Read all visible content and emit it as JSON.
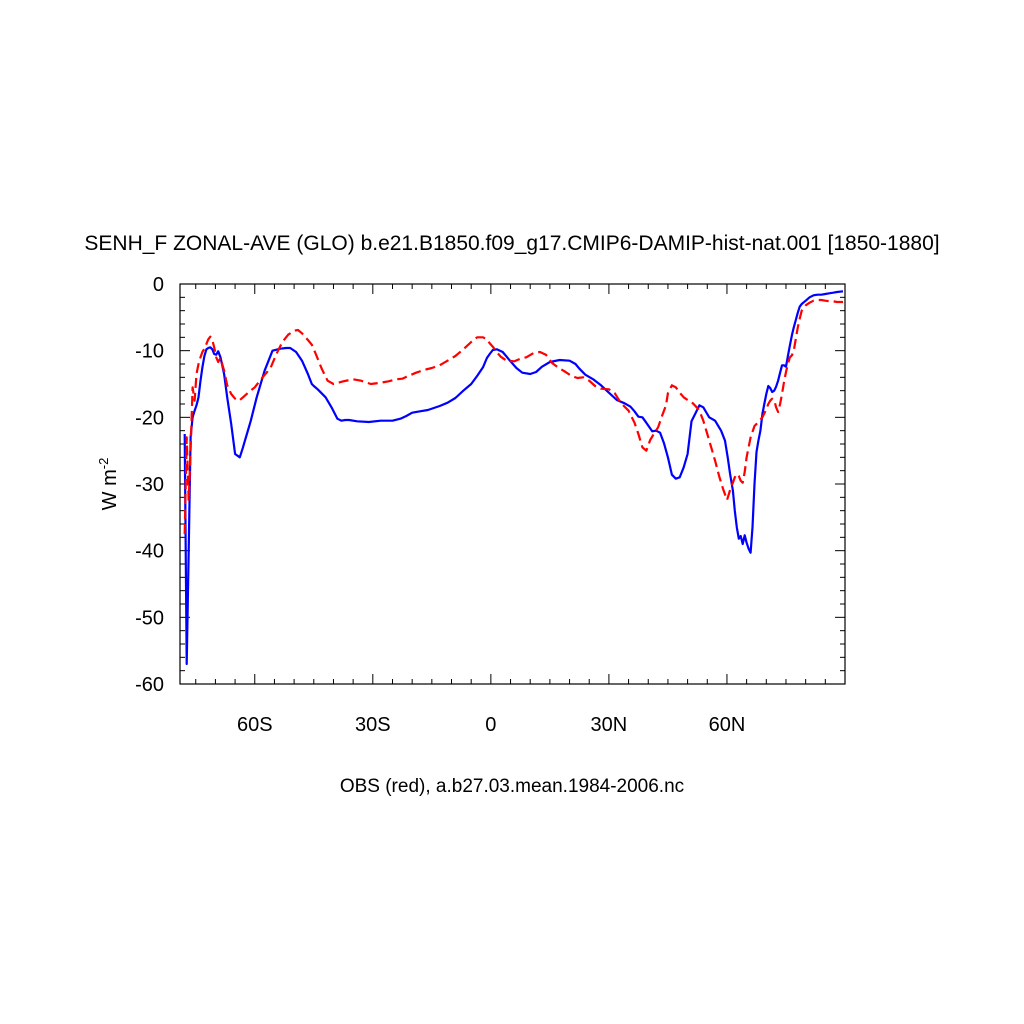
{
  "chart_data": {
    "type": "line",
    "title": "SENH_F ZONAL-AVE (GLO) b.e21.B1850.f09_g17.CMIP6-DAMIP-hist-nat.001 [1850-1880]",
    "xlabel": "OBS (red), a.b27.03.mean.1984-2006.nc",
    "ylabel": "W m",
    "ylabel_superscript": "-2",
    "xlim": [
      -79,
      90
    ],
    "ylim": [
      -60,
      0
    ],
    "x_ticks": [
      {
        "value": -60,
        "label": "60S"
      },
      {
        "value": -30,
        "label": "30S"
      },
      {
        "value": 0,
        "label": "0"
      },
      {
        "value": 30,
        "label": "30N"
      },
      {
        "value": 60,
        "label": "60N"
      }
    ],
    "y_ticks": [
      {
        "value": 0,
        "label": "0"
      },
      {
        "value": -10,
        "label": "-10"
      },
      {
        "value": -20,
        "label": "-20"
      },
      {
        "value": -30,
        "label": "-30"
      },
      {
        "value": -40,
        "label": "-40"
      },
      {
        "value": -50,
        "label": "-50"
      },
      {
        "value": -60,
        "label": "-60"
      }
    ],
    "grid": false,
    "series": [
      {
        "color": "#0000ff",
        "dash": "solid",
        "x": [
          -77.8,
          -77.3,
          -76.8,
          -76.3,
          -75.8,
          -75.3,
          -74.8,
          -74.3,
          -73.8,
          -73.3,
          -72.8,
          -72.3,
          -71.8,
          -71.3,
          -70.8,
          -70.3,
          -69.8,
          -69.3,
          -68.7,
          -67.8,
          -67.0,
          -66.0,
          -65.0,
          -63.8,
          -63.0,
          -62.5,
          -62.0,
          -61.0,
          -59.5,
          -57.5,
          -55.5,
          -53.5,
          -52.0,
          -51.0,
          -49.5,
          -48.0,
          -46.5,
          -45.5,
          -45.0,
          -44.0,
          -42.0,
          -40.5,
          -39.0,
          -38.0,
          -37.0,
          -36.0,
          -34.0,
          -31.0,
          -28.0,
          -25.0,
          -23.0,
          -21.5,
          -20.0,
          -18.0,
          -16.0,
          -14.5,
          -13.0,
          -11.0,
          -9.0,
          -7.0,
          -5.0,
          -3.5,
          -2.0,
          -1.0,
          -0.3,
          0.5,
          1.5,
          3.0,
          5.0,
          6.5,
          8.0,
          10.0,
          11.5,
          13.0,
          15.0,
          17.5,
          20.0,
          21.5,
          22.5,
          24.0,
          26.0,
          28.0,
          30.0,
          32.0,
          34.0,
          35.5,
          36.5,
          37.5,
          38.5,
          39.5,
          41.0,
          42.0,
          43.0,
          44.0,
          45.0,
          46.0,
          47.0,
          48.0,
          49.0,
          50.0,
          51.0,
          52.0,
          53.0,
          54.0,
          55.5,
          57.0,
          58.5,
          59.5,
          60.2,
          60.8,
          61.5,
          62.0,
          62.5,
          63.0,
          63.5,
          64.0,
          64.5,
          65.0,
          65.5,
          66.0,
          66.5,
          67.0,
          67.5,
          68.0,
          68.5,
          69.0,
          69.5,
          70.0,
          70.5,
          71.0,
          71.5,
          72.0,
          72.5,
          73.0,
          73.5,
          74.0,
          74.5,
          75.0,
          75.5,
          76.0,
          76.5,
          77.0,
          77.5,
          78.0,
          78.5,
          79.0,
          80.0,
          81.0,
          82.0,
          83.0,
          84.0,
          85.0,
          86.0,
          87.0,
          88.0,
          89.5
        ],
        "y": [
          -22.5,
          -57.0,
          -40.0,
          -23.0,
          -20.0,
          -19.0,
          -18.2,
          -17.0,
          -14.5,
          -12.5,
          -10.8,
          -9.8,
          -9.6,
          -9.5,
          -9.8,
          -10.5,
          -10.6,
          -10.1,
          -11.0,
          -13.5,
          -17.0,
          -21.0,
          -25.5,
          -26.0,
          -24.5,
          -23.5,
          -22.5,
          -20.5,
          -17.0,
          -13.0,
          -10.0,
          -9.7,
          -9.6,
          -9.6,
          -10.2,
          -11.5,
          -13.5,
          -15.0,
          -15.3,
          -15.8,
          -17.0,
          -18.5,
          -20.2,
          -20.5,
          -20.4,
          -20.4,
          -20.6,
          -20.7,
          -20.5,
          -20.5,
          -20.2,
          -19.8,
          -19.3,
          -19.1,
          -18.9,
          -18.6,
          -18.3,
          -17.8,
          -17.1,
          -16.0,
          -15.0,
          -13.8,
          -12.5,
          -11.1,
          -10.5,
          -9.9,
          -9.8,
          -10.2,
          -11.6,
          -12.6,
          -13.3,
          -13.5,
          -13.2,
          -12.4,
          -11.7,
          -11.4,
          -11.5,
          -12.0,
          -12.7,
          -13.6,
          -14.3,
          -15.2,
          -16.3,
          -17.4,
          -17.9,
          -18.4,
          -19.1,
          -19.9,
          -20.0,
          -20.8,
          -22.1,
          -22.0,
          -22.3,
          -23.9,
          -26.0,
          -28.6,
          -29.2,
          -29.0,
          -27.5,
          -25.5,
          -20.6,
          -19.4,
          -18.2,
          -18.5,
          -20.0,
          -20.5,
          -22.0,
          -23.5,
          -26.0,
          -28.5,
          -31.0,
          -34.0,
          -36.5,
          -38.2,
          -37.8,
          -39.0,
          -37.7,
          -38.8,
          -39.7,
          -40.3,
          -36.5,
          -30.0,
          -25.2,
          -23.5,
          -22.0,
          -19.5,
          -18.0,
          -16.5,
          -15.3,
          -15.6,
          -16.2,
          -16.0,
          -15.4,
          -14.5,
          -13.3,
          -12.2,
          -12.2,
          -12.4,
          -10.8,
          -9.2,
          -7.7,
          -6.5,
          -5.4,
          -4.3,
          -3.4,
          -3.0,
          -2.5,
          -2.0,
          -1.7,
          -1.6,
          -1.6,
          -1.5,
          -1.4,
          -1.3,
          -1.2,
          -1.1
        ]
      },
      {
        "color": "#ff0000",
        "dash": "dashed",
        "x": [
          -77.8,
          -77.3,
          -76.8,
          -76.3,
          -75.8,
          -75.3,
          -74.8,
          -74.3,
          -73.8,
          -73.3,
          -72.8,
          -72.3,
          -71.8,
          -71.3,
          -70.8,
          -70.3,
          -69.8,
          -69.3,
          -68.7,
          -67.8,
          -67.0,
          -66.0,
          -65.0,
          -64.0,
          -63.0,
          -61.5,
          -60.0,
          -58.0,
          -56.0,
          -54.5,
          -53.0,
          -51.5,
          -50.0,
          -49.0,
          -48.0,
          -46.5,
          -45.5,
          -44.5,
          -43.0,
          -41.5,
          -40.0,
          -37.5,
          -35.0,
          -33.0,
          -30.5,
          -28.0,
          -26.0,
          -24.0,
          -22.5,
          -21.0,
          -19.0,
          -17.0,
          -15.0,
          -13.0,
          -11.0,
          -9.0,
          -7.0,
          -5.0,
          -3.5,
          -2.0,
          -1.0,
          -0.3,
          0.5,
          1.5,
          2.5,
          4.0,
          6.0,
          7.5,
          9.0,
          11.0,
          12.5,
          14.0,
          15.5,
          17.0,
          19.0,
          20.5,
          22.0,
          23.5,
          25.0,
          26.5,
          28.0,
          30.0,
          31.5,
          33.0,
          35.0,
          36.5,
          37.5,
          38.5,
          39.5,
          40.5,
          41.5,
          42.5,
          43.5,
          44.5,
          45.0,
          46.0,
          47.0,
          48.0,
          49.0,
          50.0,
          51.0,
          52.0,
          53.0,
          54.0,
          55.0,
          56.0,
          57.0,
          58.0,
          59.0,
          60.0,
          60.5,
          61.0,
          61.5,
          62.0,
          62.5,
          63.0,
          63.5,
          64.0,
          64.5,
          65.0,
          65.5,
          66.0,
          67.0,
          68.0,
          69.0,
          70.0,
          70.5,
          71.0,
          71.5,
          72.0,
          72.5,
          73.0,
          73.5,
          74.0,
          74.5,
          75.0,
          75.5,
          76.0,
          76.5,
          77.0,
          77.5,
          78.0,
          78.5,
          79.0,
          80.0,
          81.0,
          82.0,
          83.0,
          84.0,
          85.0,
          86.0,
          87.0,
          88.0,
          89.5
        ],
        "y": [
          -37.5,
          -23.0,
          -32.5,
          -25.0,
          -15.5,
          -17.5,
          -13.5,
          -12.0,
          -11.0,
          -10.2,
          -9.7,
          -9.0,
          -8.3,
          -7.9,
          -8.4,
          -9.5,
          -11.0,
          -11.7,
          -11.1,
          -13.0,
          -15.2,
          -16.5,
          -17.2,
          -17.5,
          -17.0,
          -16.2,
          -15.5,
          -14.0,
          -12.6,
          -10.5,
          -8.7,
          -7.6,
          -7.0,
          -6.9,
          -7.4,
          -8.4,
          -9.1,
          -10.5,
          -12.7,
          -14.5,
          -15.0,
          -14.6,
          -14.3,
          -14.5,
          -15.0,
          -14.8,
          -14.6,
          -14.3,
          -14.2,
          -13.8,
          -13.3,
          -12.9,
          -12.6,
          -12.2,
          -11.5,
          -10.8,
          -9.8,
          -8.7,
          -8.0,
          -8.0,
          -8.3,
          -8.9,
          -9.4,
          -10.2,
          -10.9,
          -11.5,
          -11.6,
          -11.2,
          -11.0,
          -10.3,
          -10.2,
          -10.6,
          -11.8,
          -12.5,
          -13.2,
          -13.8,
          -14.1,
          -14.0,
          -14.5,
          -15.3,
          -15.7,
          -15.8,
          -16.4,
          -17.8,
          -19.0,
          -20.8,
          -22.5,
          -24.5,
          -25.0,
          -23.4,
          -22.4,
          -21.5,
          -19.8,
          -18.2,
          -16.4,
          -15.2,
          -15.5,
          -16.3,
          -17.0,
          -17.4,
          -17.7,
          -18.3,
          -19.0,
          -20.5,
          -22.5,
          -24.5,
          -26.5,
          -28.8,
          -30.7,
          -32.4,
          -31.5,
          -30.5,
          -29.8,
          -29.0,
          -28.5,
          -28.8,
          -29.5,
          -29.8,
          -28.2,
          -26.0,
          -24.5,
          -23.0,
          -21.3,
          -20.7,
          -20.0,
          -18.8,
          -18.0,
          -17.5,
          -17.2,
          -17.4,
          -18.5,
          -19.2,
          -18.0,
          -16.5,
          -14.7,
          -13.2,
          -12.0,
          -11.0,
          -10.7,
          -10.0,
          -8.2,
          -6.5,
          -5.2,
          -4.0,
          -3.2,
          -2.8,
          -2.5,
          -2.4,
          -2.4,
          -2.5,
          -2.6,
          -2.6,
          -2.7,
          -2.7
        ]
      }
    ]
  }
}
